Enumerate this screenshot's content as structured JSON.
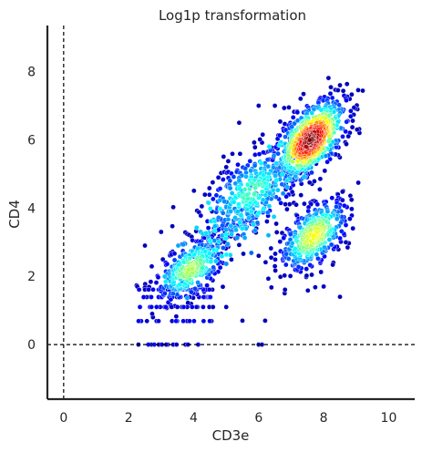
{
  "chart_data": {
    "type": "scatter",
    "title": "Log1p transformation",
    "xlabel": "CD3e",
    "ylabel": "CD4",
    "xlim": [
      -0.5,
      10.8
    ],
    "ylim": [
      -1.6,
      9.35
    ],
    "xticks": [
      0,
      2,
      4,
      6,
      8,
      10
    ],
    "yticks": [
      0,
      2,
      4,
      6,
      8
    ],
    "xtick_labels": [
      "0",
      "2",
      "4",
      "6",
      "8",
      "10"
    ],
    "ytick_labels": [
      "0",
      "2",
      "4",
      "6",
      "8"
    ],
    "reference_lines": {
      "x": 0,
      "y": 0,
      "style": "dashed"
    },
    "colormap": "jet (point density)",
    "grid": false,
    "clusters": [
      {
        "center": [
          7.6,
          6.0
        ],
        "spread": [
          0.55,
          0.6
        ],
        "count": 650,
        "peak_density": 1.0
      },
      {
        "center": [
          7.7,
          3.2
        ],
        "spread": [
          0.55,
          0.55
        ],
        "count": 420,
        "peak_density": 0.62
      },
      {
        "center": [
          3.9,
          2.2
        ],
        "spread": [
          0.55,
          0.5
        ],
        "count": 330,
        "peak_density": 0.55
      },
      {
        "center": [
          5.8,
          4.5
        ],
        "spread": [
          0.8,
          0.7
        ],
        "count": 300,
        "peak_density": 0.45
      }
    ],
    "discrete_rows": {
      "y_values": [
        0.0,
        0.69,
        1.1,
        1.39,
        1.61
      ],
      "x_range": [
        2.3,
        4.6
      ]
    },
    "zero_points": [
      [
        2.3,
        0
      ],
      [
        2.7,
        0
      ],
      [
        3.2,
        0
      ],
      [
        6.0,
        0
      ],
      [
        6.1,
        0
      ]
    ],
    "outliers": [
      [
        9.1,
        6.2
      ],
      [
        8.6,
        4.5
      ],
      [
        8.8,
        7.2
      ],
      [
        8.5,
        7.6
      ],
      [
        6.5,
        7.0
      ],
      [
        6.0,
        7.0
      ],
      [
        5.4,
        6.5
      ],
      [
        5.0,
        5.2
      ],
      [
        5.0,
        1.1
      ],
      [
        6.2,
        0.7
      ],
      [
        5.5,
        0.7
      ],
      [
        8.5,
        1.4
      ],
      [
        8.0,
        1.7
      ],
      [
        6.0,
        2.6
      ],
      [
        2.5,
        2.9
      ],
      [
        3.0,
        3.3
      ],
      [
        8.3,
        2.4
      ],
      [
        6.8,
        1.5
      ]
    ]
  }
}
